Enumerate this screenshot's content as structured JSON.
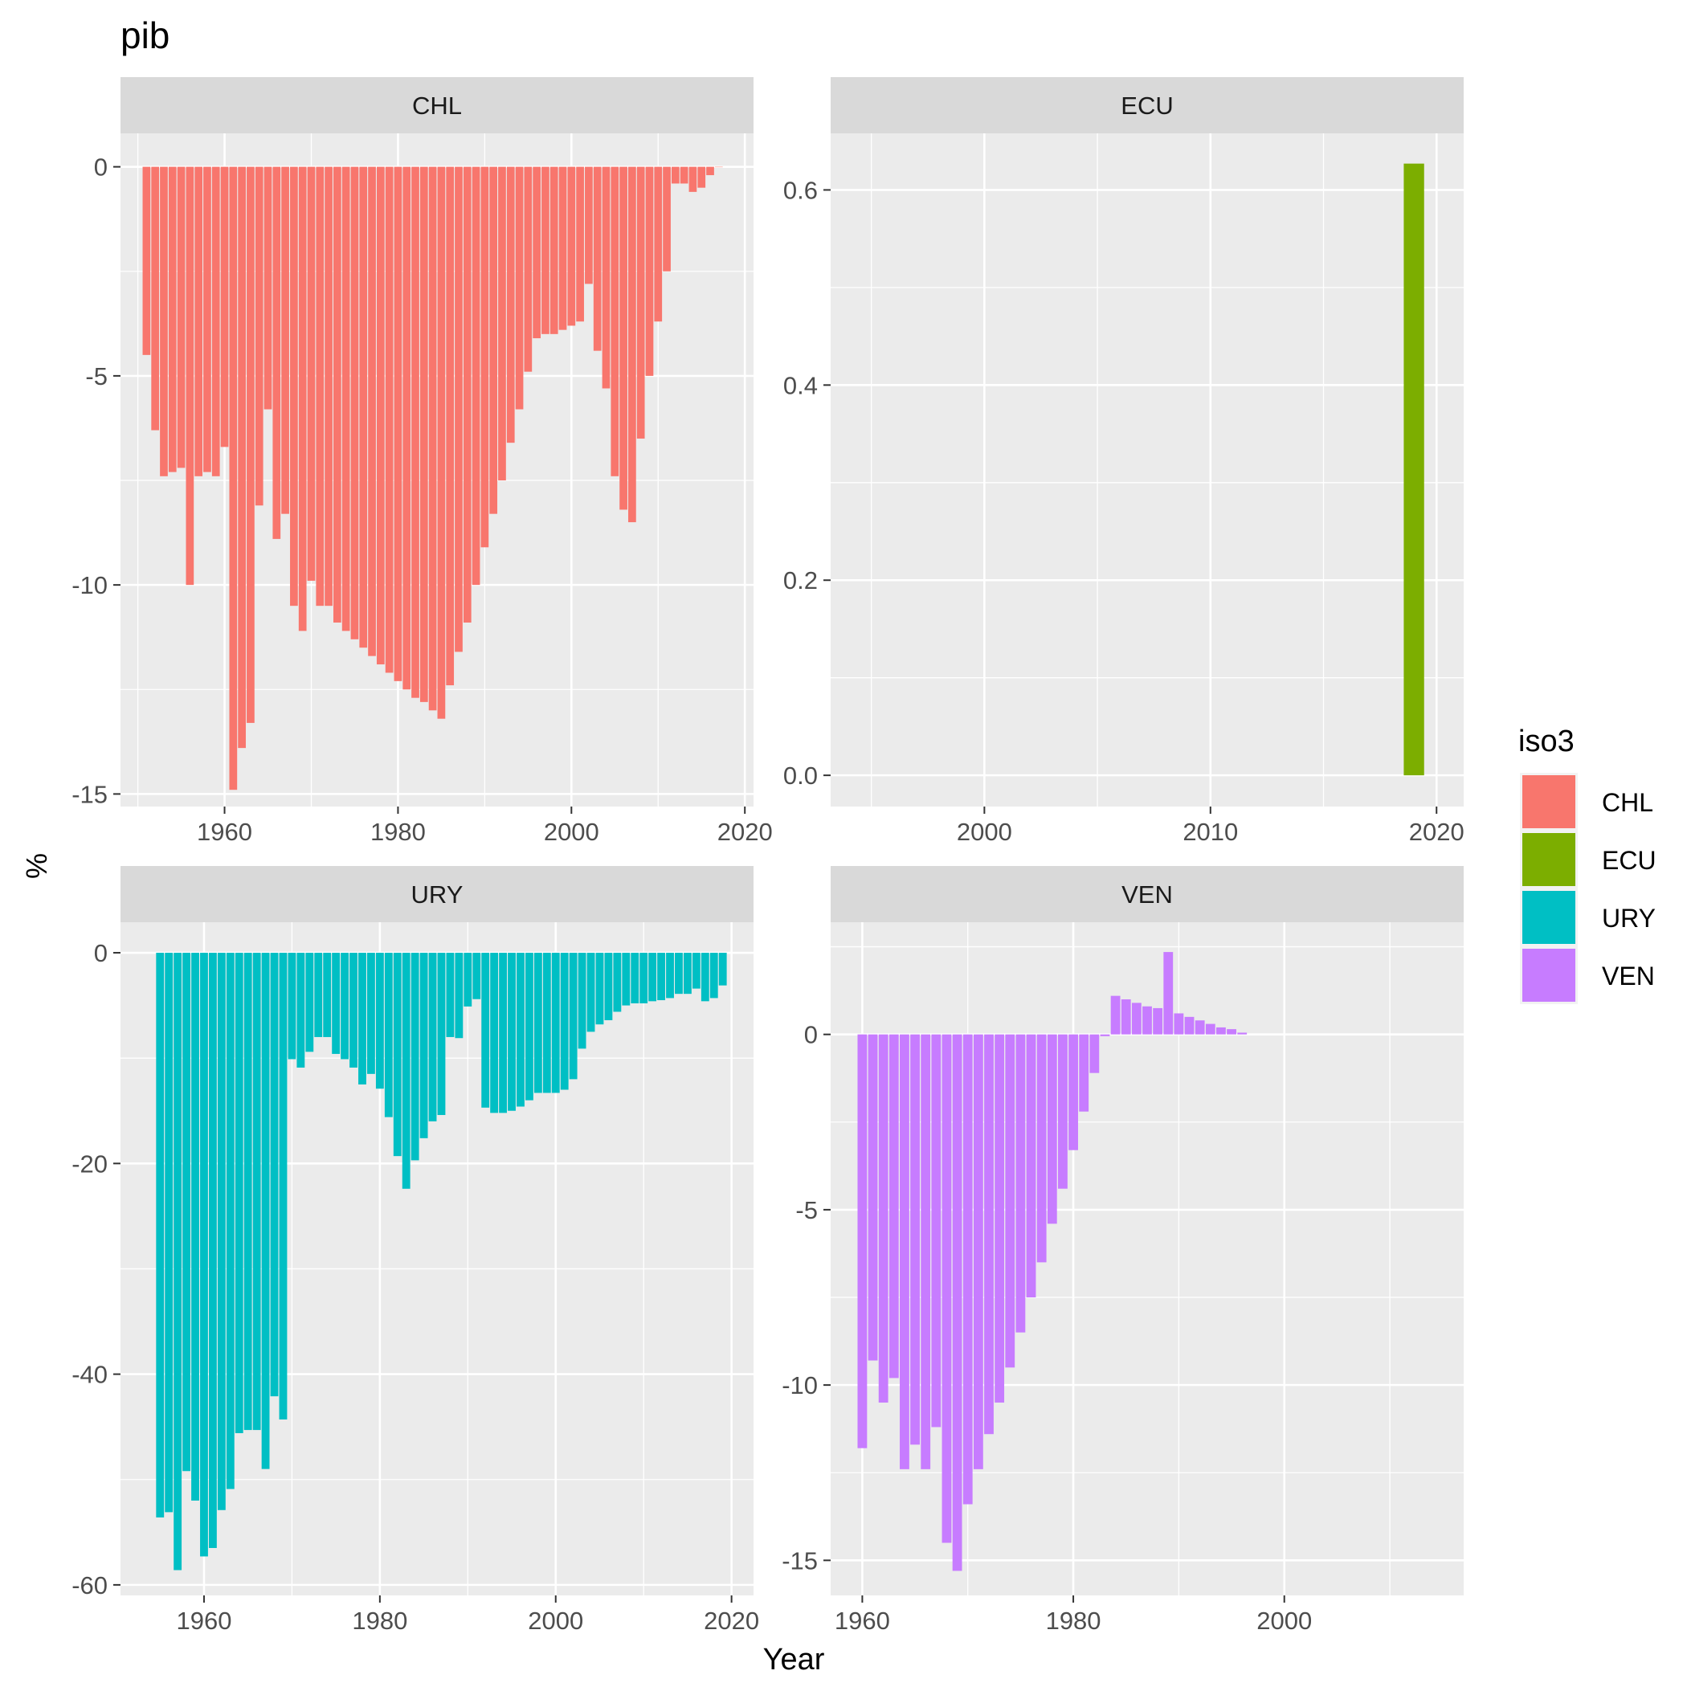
{
  "title": "pib",
  "x_label": "Year",
  "y_label": "%",
  "legend": {
    "title": "iso3",
    "position": "right",
    "entries": [
      {
        "label": "CHL",
        "color": "#F8766D"
      },
      {
        "label": "ECU",
        "color": "#7CAE00"
      },
      {
        "label": "URY",
        "color": "#00BFC4"
      },
      {
        "label": "VEN",
        "color": "#C77CFF"
      }
    ]
  },
  "chart_data": [
    {
      "type": "bar",
      "panel": "CHL",
      "color": "#F8766D",
      "xlim": [
        1948,
        2021
      ],
      "ylim": [
        -15.3,
        0.8
      ],
      "x_ticks": [
        1960,
        1980,
        2000,
        2020
      ],
      "y_ticks": [
        0,
        -5,
        -10,
        -15
      ],
      "grid": true,
      "x": [
        1951,
        1952,
        1953,
        1954,
        1955,
        1956,
        1957,
        1958,
        1959,
        1960,
        1961,
        1962,
        1963,
        1964,
        1965,
        1966,
        1967,
        1968,
        1969,
        1970,
        1971,
        1972,
        1973,
        1974,
        1975,
        1976,
        1977,
        1978,
        1979,
        1980,
        1981,
        1982,
        1983,
        1984,
        1985,
        1986,
        1987,
        1988,
        1989,
        1990,
        1991,
        1992,
        1993,
        1994,
        1995,
        1996,
        1997,
        1998,
        1999,
        2000,
        2001,
        2002,
        2003,
        2004,
        2005,
        2006,
        2007,
        2008,
        2009,
        2010,
        2011,
        2012,
        2013,
        2014,
        2015,
        2016,
        2017
      ],
      "values": [
        -4.5,
        -6.3,
        -7.4,
        -7.3,
        -7.2,
        -10.0,
        -7.4,
        -7.3,
        -7.4,
        -6.7,
        -14.9,
        -13.9,
        -13.3,
        -8.1,
        -5.8,
        -8.9,
        -8.3,
        -10.5,
        -11.1,
        -9.9,
        -10.5,
        -10.5,
        -10.9,
        -11.1,
        -11.3,
        -11.5,
        -11.7,
        -11.9,
        -12.1,
        -12.3,
        -12.5,
        -12.7,
        -12.8,
        -13.0,
        -13.2,
        -12.4,
        -11.6,
        -10.9,
        -10.0,
        -9.1,
        -8.3,
        -7.5,
        -6.6,
        -5.8,
        -4.9,
        -4.1,
        -4.0,
        -4.0,
        -3.9,
        -3.8,
        -3.7,
        -2.8,
        -4.4,
        -5.3,
        -7.4,
        -8.2,
        -8.5,
        -6.5,
        -5.0,
        -3.7,
        -2.5,
        -0.4,
        -0.4,
        -0.6,
        -0.5,
        -0.2,
        0
      ]
    },
    {
      "type": "bar",
      "panel": "ECU",
      "color": "#7CAE00",
      "xlim": [
        1993.2,
        2021.2
      ],
      "ylim": [
        -0.032,
        0.658
      ],
      "x_ticks": [
        2000,
        2010,
        2020
      ],
      "y_ticks": [
        0.0,
        0.2,
        0.4,
        0.6
      ],
      "y_tick_labels": [
        "0.0",
        "0.2",
        "0.4",
        "0.6"
      ],
      "grid": true,
      "x": [
        2019
      ],
      "values": [
        0.627
      ]
    },
    {
      "type": "bar",
      "panel": "URY",
      "color": "#00BFC4",
      "xlim": [
        1950.5,
        2022.5
      ],
      "ylim": [
        -61.0,
        2.9
      ],
      "x_ticks": [
        1960,
        1980,
        2000,
        2020
      ],
      "y_ticks": [
        0,
        -20,
        -40,
        -60
      ],
      "grid": true,
      "x": [
        1955,
        1956,
        1957,
        1958,
        1959,
        1960,
        1961,
        1962,
        1963,
        1964,
        1965,
        1966,
        1967,
        1968,
        1969,
        1970,
        1971,
        1972,
        1973,
        1974,
        1975,
        1976,
        1977,
        1978,
        1979,
        1980,
        1981,
        1982,
        1983,
        1984,
        1985,
        1986,
        1987,
        1988,
        1989,
        1990,
        1991,
        1992,
        1993,
        1994,
        1995,
        1996,
        1997,
        1998,
        1999,
        2000,
        2001,
        2002,
        2003,
        2004,
        2005,
        2006,
        2007,
        2008,
        2009,
        2010,
        2011,
        2012,
        2013,
        2014,
        2015,
        2016,
        2017,
        2018,
        2019
      ],
      "values": [
        -53.6,
        -53.1,
        -58.6,
        -49.2,
        -52.0,
        -57.3,
        -56.5,
        -52.9,
        -50.9,
        -45.6,
        -45.3,
        -45.3,
        -49.0,
        -42.1,
        -44.3,
        -10.1,
        -10.9,
        -9.4,
        -8.0,
        -8.0,
        -9.6,
        -10.1,
        -10.9,
        -12.5,
        -11.5,
        -12.9,
        -15.6,
        -19.3,
        -22.4,
        -19.7,
        -17.6,
        -16.0,
        -15.4,
        -8.0,
        -8.1,
        -5.1,
        -4.4,
        -14.7,
        -15.2,
        -15.2,
        -15.0,
        -14.6,
        -14.0,
        -13.3,
        -13.3,
        -13.3,
        -13.0,
        -12.0,
        -9.1,
        -7.5,
        -6.8,
        -6.4,
        -5.6,
        -5.0,
        -4.8,
        -4.8,
        -4.6,
        -4.5,
        -4.3,
        -3.9,
        -3.9,
        -3.4,
        -4.6,
        -4.3,
        -3.1
      ]
    },
    {
      "type": "bar",
      "panel": "VEN",
      "color": "#C77CFF",
      "xlim": [
        1957,
        2017
      ],
      "ylim": [
        -16.0,
        3.2
      ],
      "x_ticks": [
        1960,
        1980,
        2000
      ],
      "y_ticks": [
        0,
        -5,
        -10,
        -15
      ],
      "grid": true,
      "x": [
        1960,
        1961,
        1962,
        1963,
        1964,
        1965,
        1966,
        1967,
        1968,
        1969,
        1970,
        1971,
        1972,
        1973,
        1974,
        1975,
        1976,
        1977,
        1978,
        1979,
        1980,
        1981,
        1982,
        1983,
        1984,
        1985,
        1986,
        1987,
        1988,
        1989,
        1990,
        1991,
        1992,
        1993,
        1994,
        1995,
        1996
      ],
      "values": [
        -11.8,
        -9.3,
        -10.5,
        -9.8,
        -12.4,
        -11.7,
        -12.4,
        -11.2,
        -14.5,
        -15.3,
        -13.4,
        -12.4,
        -11.4,
        -10.5,
        -9.5,
        -8.5,
        -7.5,
        -6.5,
        -5.4,
        -4.4,
        -3.3,
        -2.2,
        -1.1,
        -0.05,
        1.1,
        1.0,
        0.9,
        0.8,
        0.75,
        2.35,
        0.6,
        0.5,
        0.4,
        0.3,
        0.2,
        0.15,
        0.05
      ]
    }
  ]
}
